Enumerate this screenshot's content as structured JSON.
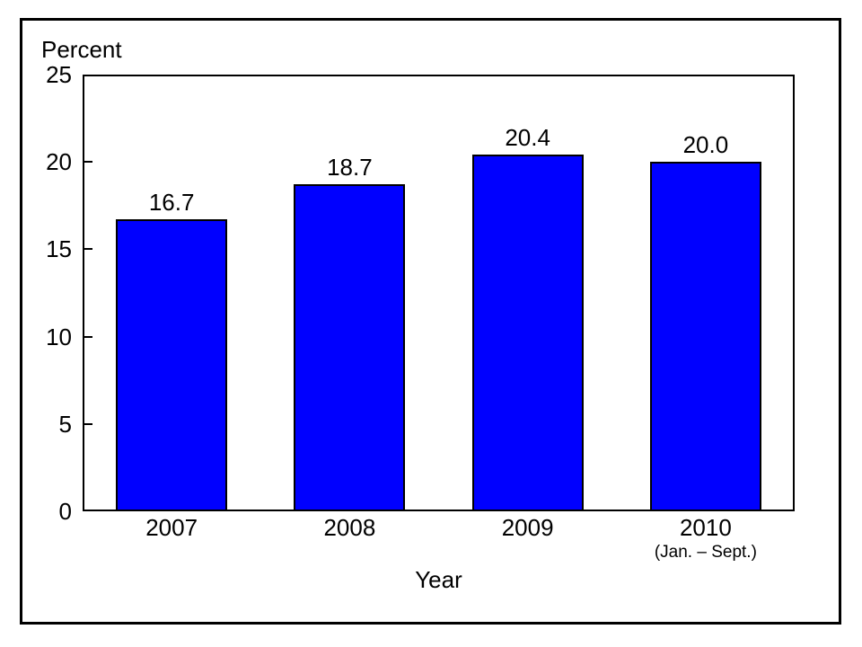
{
  "chart_data": {
    "type": "bar",
    "title": "",
    "ylabel": "Percent",
    "xlabel": "Year",
    "categories": [
      "2007",
      "2008",
      "2009",
      "2010"
    ],
    "category_sublabels": [
      "",
      "",
      "",
      "(Jan. – Sept.)"
    ],
    "values": [
      16.7,
      18.7,
      20.4,
      20.0
    ],
    "value_labels": [
      "16.7",
      "18.7",
      "20.4",
      "20.0"
    ],
    "ylim": [
      0,
      25
    ],
    "yticks": [
      0,
      5,
      10,
      15,
      20,
      25
    ],
    "grid": false,
    "legend": null,
    "bar_color": "#0000FF",
    "bar_border_color": "#000000",
    "frame_color": "#000000",
    "background_color": "#FFFFFF"
  }
}
